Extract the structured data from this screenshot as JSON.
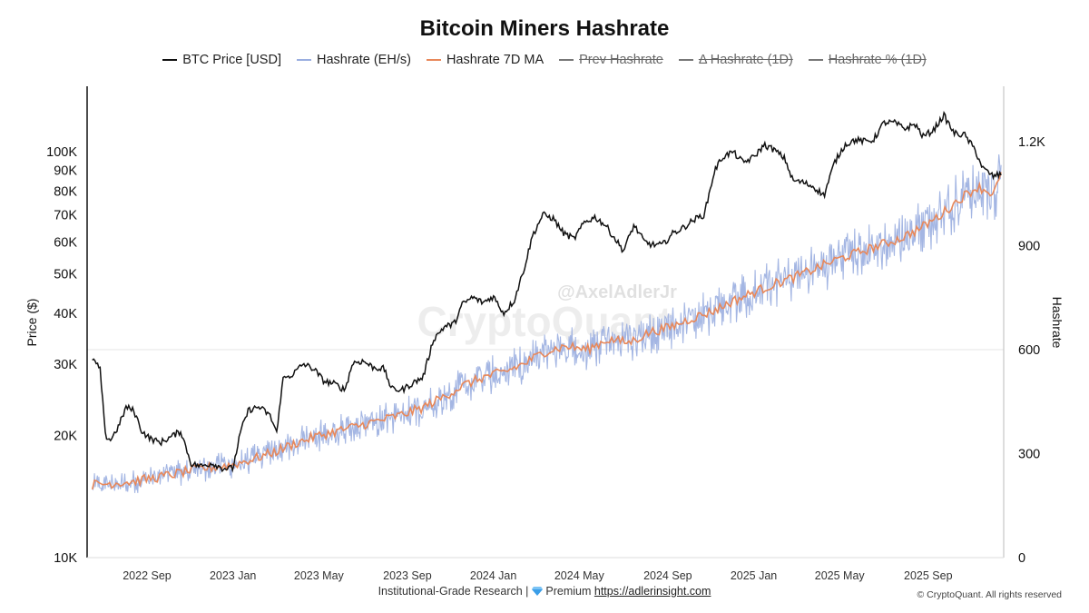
{
  "chart_data": {
    "type": "line",
    "title": "Bitcoin Miners Hashrate",
    "legend": [
      {
        "label": "BTC Price [USD]",
        "color": "#111111",
        "active": true
      },
      {
        "label": "Hashrate (EH/s)",
        "color": "#9aaee0",
        "active": true
      },
      {
        "label": "Hashrate 7D MA",
        "color": "#e8885a",
        "active": true
      },
      {
        "label": "Prev Hashrate",
        "color": "#777777",
        "active": false
      },
      {
        "label": "Δ Hashrate (1D)",
        "color": "#777777",
        "active": false
      },
      {
        "label": "Hashrate % (1D)",
        "color": "#777777",
        "active": false
      }
    ],
    "y_left": {
      "label": "Price ($)",
      "scale": "log",
      "range": [
        10000,
        145000
      ],
      "ticks": [
        {
          "v": 10000,
          "label": "10K"
        },
        {
          "v": 20000,
          "label": "20K"
        },
        {
          "v": 30000,
          "label": "30K"
        },
        {
          "v": 40000,
          "label": "40K"
        },
        {
          "v": 50000,
          "label": "50K"
        },
        {
          "v": 60000,
          "label": "60K"
        },
        {
          "v": 70000,
          "label": "70K"
        },
        {
          "v": 80000,
          "label": "80K"
        },
        {
          "v": 90000,
          "label": "90K"
        },
        {
          "v": 100000,
          "label": "100K"
        }
      ]
    },
    "y_right": {
      "label": "Hashrate",
      "scale": "linear",
      "range": [
        0,
        1360
      ],
      "ticks": [
        {
          "v": 0,
          "label": "0"
        },
        {
          "v": 300,
          "label": "300"
        },
        {
          "v": 600,
          "label": "600"
        },
        {
          "v": 900,
          "label": "900"
        },
        {
          "v": 1200,
          "label": "1.2K"
        }
      ]
    },
    "x_axis": {
      "range": [
        2022.44,
        2025.96
      ],
      "ticks": [
        {
          "t": 2022.67,
          "label": "2022 Sep"
        },
        {
          "t": 2023.0,
          "label": "2023 Jan"
        },
        {
          "t": 2023.33,
          "label": "2023 May"
        },
        {
          "t": 2023.67,
          "label": "2023 Sep"
        },
        {
          "t": 2024.0,
          "label": "2024 Jan"
        },
        {
          "t": 2024.33,
          "label": "2024 May"
        },
        {
          "t": 2024.67,
          "label": "2024 Sep"
        },
        {
          "t": 2025.0,
          "label": "2025 Jan"
        },
        {
          "t": 2025.33,
          "label": "2025 May"
        },
        {
          "t": 2025.67,
          "label": "2025 Sep"
        }
      ]
    },
    "gridline": {
      "axis": "right",
      "value": 600
    },
    "series": [
      {
        "name": "BTC Price [USD]",
        "color": "#111111",
        "points": [
          [
            2022.46,
            31000
          ],
          [
            2022.49,
            29000
          ],
          [
            2022.51,
            20000
          ],
          [
            2022.53,
            19500
          ],
          [
            2022.56,
            21000
          ],
          [
            2022.59,
            23500
          ],
          [
            2022.62,
            23000
          ],
          [
            2022.65,
            20500
          ],
          [
            2022.68,
            19700
          ],
          [
            2022.72,
            19200
          ],
          [
            2022.76,
            19800
          ],
          [
            2022.8,
            20500
          ],
          [
            2022.84,
            17000
          ],
          [
            2022.88,
            16800
          ],
          [
            2022.92,
            17100
          ],
          [
            2022.96,
            16600
          ],
          [
            2023.0,
            16600
          ],
          [
            2023.03,
            20500
          ],
          [
            2023.06,
            23100
          ],
          [
            2023.1,
            23500
          ],
          [
            2023.14,
            22500
          ],
          [
            2023.17,
            20300
          ],
          [
            2023.19,
            27500
          ],
          [
            2023.23,
            28300
          ],
          [
            2023.27,
            30000
          ],
          [
            2023.31,
            29200
          ],
          [
            2023.35,
            27200
          ],
          [
            2023.39,
            26800
          ],
          [
            2023.43,
            25900
          ],
          [
            2023.46,
            30200
          ],
          [
            2023.5,
            30500
          ],
          [
            2023.54,
            29400
          ],
          [
            2023.58,
            29200
          ],
          [
            2023.61,
            26000
          ],
          [
            2023.65,
            25900
          ],
          [
            2023.69,
            26900
          ],
          [
            2023.73,
            27800
          ],
          [
            2023.77,
            34500
          ],
          [
            2023.81,
            37000
          ],
          [
            2023.85,
            37700
          ],
          [
            2023.88,
            42000
          ],
          [
            2023.92,
            43800
          ],
          [
            2023.96,
            42500
          ],
          [
            2024.0,
            44000
          ],
          [
            2024.04,
            40000
          ],
          [
            2024.08,
            43000
          ],
          [
            2024.12,
            52000
          ],
          [
            2024.15,
            62000
          ],
          [
            2024.19,
            70000
          ],
          [
            2024.23,
            68500
          ],
          [
            2024.27,
            63000
          ],
          [
            2024.31,
            61000
          ],
          [
            2024.35,
            67000
          ],
          [
            2024.39,
            69000
          ],
          [
            2024.43,
            66000
          ],
          [
            2024.46,
            62000
          ],
          [
            2024.5,
            57000
          ],
          [
            2024.54,
            66000
          ],
          [
            2024.58,
            60000
          ],
          [
            2024.61,
            59000
          ],
          [
            2024.65,
            59000
          ],
          [
            2024.69,
            63000
          ],
          [
            2024.73,
            65000
          ],
          [
            2024.77,
            68000
          ],
          [
            2024.81,
            70000
          ],
          [
            2024.85,
            90000
          ],
          [
            2024.88,
            97000
          ],
          [
            2024.92,
            100000
          ],
          [
            2024.96,
            94000
          ],
          [
            2025.0,
            97000
          ],
          [
            2025.04,
            104000
          ],
          [
            2025.08,
            101000
          ],
          [
            2025.12,
            96000
          ],
          [
            2025.15,
            85000
          ],
          [
            2025.19,
            84000
          ],
          [
            2025.23,
            82000
          ],
          [
            2025.27,
            78000
          ],
          [
            2025.31,
            94000
          ],
          [
            2025.35,
            104000
          ],
          [
            2025.39,
            107000
          ],
          [
            2025.43,
            106000
          ],
          [
            2025.46,
            107000
          ],
          [
            2025.5,
            118000
          ],
          [
            2025.54,
            118000
          ],
          [
            2025.58,
            114000
          ],
          [
            2025.62,
            117000
          ],
          [
            2025.65,
            109000
          ],
          [
            2025.69,
            113000
          ],
          [
            2025.73,
            123000
          ],
          [
            2025.77,
            111000
          ],
          [
            2025.81,
            110000
          ],
          [
            2025.85,
            101000
          ],
          [
            2025.88,
            91000
          ],
          [
            2025.92,
            87000
          ],
          [
            2025.95,
            88000
          ]
        ]
      },
      {
        "name": "Hashrate 7D MA",
        "color": "#e8885a",
        "points": [
          [
            2022.46,
            210
          ],
          [
            2022.54,
            215
          ],
          [
            2022.62,
            220
          ],
          [
            2022.7,
            230
          ],
          [
            2022.78,
            242
          ],
          [
            2022.86,
            255
          ],
          [
            2022.94,
            262
          ],
          [
            2023.0,
            268
          ],
          [
            2023.08,
            285
          ],
          [
            2023.16,
            305
          ],
          [
            2023.24,
            330
          ],
          [
            2023.32,
            350
          ],
          [
            2023.4,
            365
          ],
          [
            2023.48,
            380
          ],
          [
            2023.56,
            395
          ],
          [
            2023.64,
            410
          ],
          [
            2023.72,
            430
          ],
          [
            2023.8,
            460
          ],
          [
            2023.88,
            495
          ],
          [
            2023.96,
            520
          ],
          [
            2024.04,
            535
          ],
          [
            2024.12,
            560
          ],
          [
            2024.2,
            595
          ],
          [
            2024.28,
            610
          ],
          [
            2024.36,
            600
          ],
          [
            2024.44,
            630
          ],
          [
            2024.52,
            620
          ],
          [
            2024.6,
            650
          ],
          [
            2024.68,
            665
          ],
          [
            2024.76,
            690
          ],
          [
            2024.84,
            710
          ],
          [
            2024.92,
            740
          ],
          [
            2025.0,
            765
          ],
          [
            2025.08,
            790
          ],
          [
            2025.16,
            810
          ],
          [
            2025.24,
            835
          ],
          [
            2025.32,
            860
          ],
          [
            2025.4,
            880
          ],
          [
            2025.48,
            900
          ],
          [
            2025.56,
            920
          ],
          [
            2025.64,
            950
          ],
          [
            2025.72,
            990
          ],
          [
            2025.8,
            1040
          ],
          [
            2025.86,
            1070
          ],
          [
            2025.92,
            1050
          ],
          [
            2025.95,
            1100
          ]
        ]
      },
      {
        "name": "Hashrate (EH/s)",
        "color": "#9aaee0",
        "noise_amplitude": 60,
        "note": "daily values oscillate roughly ±60 EH/s around the 7D MA"
      },
      {
        "name": "Prev Hashrate",
        "color": "#777777",
        "hidden": true
      },
      {
        "name": "Δ Hashrate (1D)",
        "color": "#777777",
        "hidden": true
      },
      {
        "name": "Hashrate % (1D)",
        "color": "#777777",
        "hidden": true
      }
    ],
    "watermarks": [
      "CryptoQuant",
      "@AxelAdlerJr"
    ]
  },
  "footer": {
    "text": "Institutional-Grade Research | ",
    "premium": "Premium",
    "link": "https://adlerinsight.com",
    "copyright": "© CryptoQuant. All rights reserved"
  }
}
